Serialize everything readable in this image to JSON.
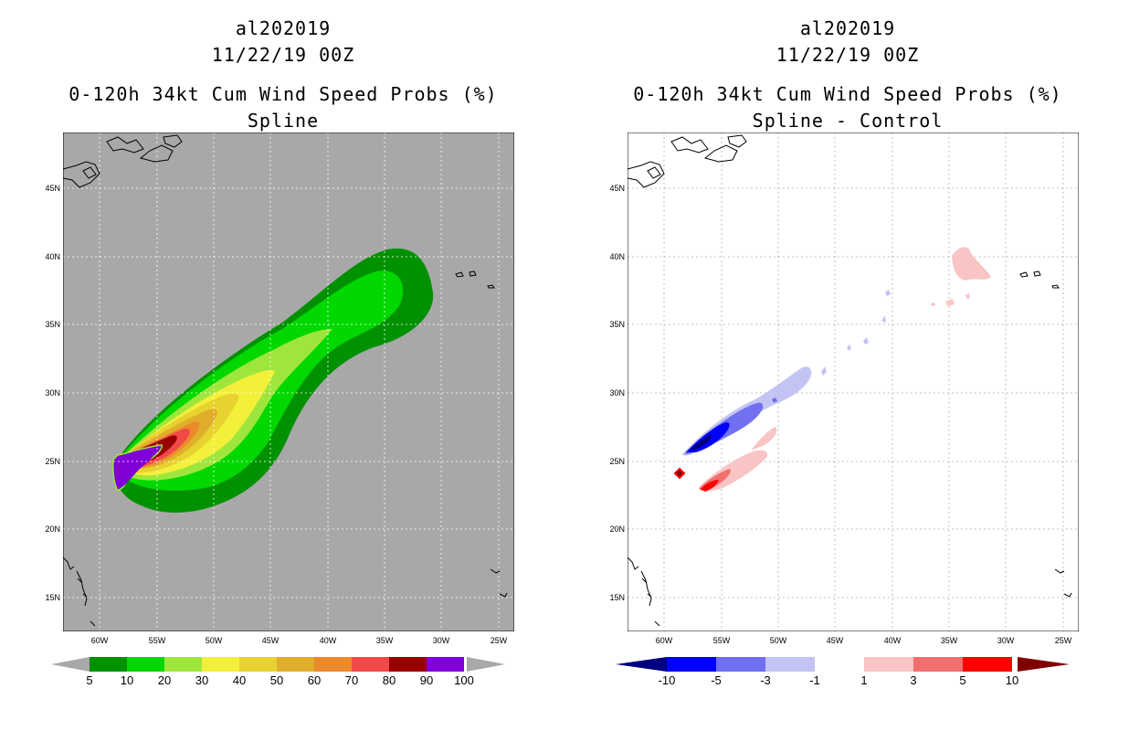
{
  "left": {
    "title1": "al202019",
    "title2": "11/22/19 00Z",
    "title3": "0-120h 34kt Cum Wind Speed Probs (%)",
    "title4": "Spline",
    "colorbar": {
      "labels": [
        "5",
        "10",
        "20",
        "30",
        "40",
        "50",
        "60",
        "70",
        "80",
        "90",
        "100"
      ],
      "colors": [
        "#009100",
        "#00d800",
        "#9fe63c",
        "#f3f03a",
        "#e8d230",
        "#e1ae2c",
        "#eb8a2c",
        "#f24848",
        "#980000",
        "#8000d8"
      ]
    }
  },
  "right": {
    "title1": "al202019",
    "title2": "11/22/19 00Z",
    "title3": "0-120h 34kt Cum Wind Speed Probs (%)",
    "title4": "Spline - Control",
    "colorbar": {
      "labels": [
        "-10",
        "-5",
        "-3",
        "-1",
        "1",
        "3",
        "5",
        "10"
      ],
      "colors": [
        "#0000ff",
        "#7070f0",
        "#c4c4f4",
        "#ffffff",
        "#f8c4c4",
        "#f07070",
        "#ff0000"
      ],
      "end_low": "#000080",
      "end_high": "#800000"
    }
  },
  "axes": {
    "lat_labels": [
      "45N",
      "40N",
      "35N",
      "30N",
      "25N",
      "20N",
      "15N"
    ],
    "lon_labels": [
      "60W",
      "55W",
      "50W",
      "45W",
      "40W",
      "35W",
      "30W",
      "25W"
    ]
  }
}
